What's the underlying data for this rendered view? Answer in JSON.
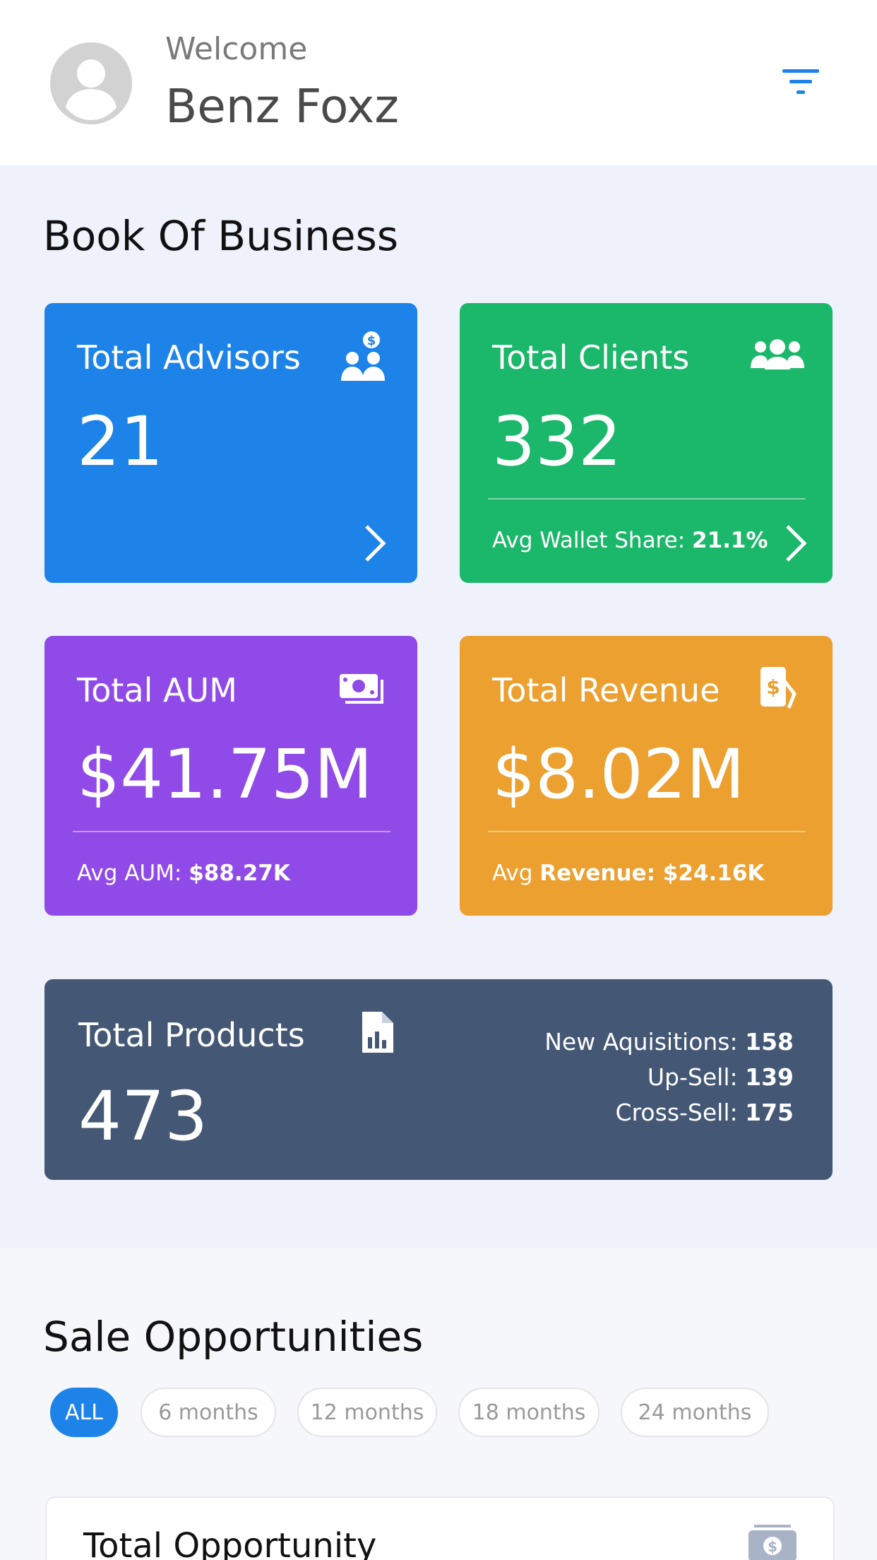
{
  "header": {
    "welcome": "Welcome",
    "username": "Benz Foxz"
  },
  "book_of_business": {
    "title": "Book Of Business",
    "advisors": {
      "label": "Total Advisors",
      "value": "21"
    },
    "clients": {
      "label": "Total Clients",
      "value": "332",
      "sub_label": "Avg Wallet Share: ",
      "sub_value": "21.1%"
    },
    "aum": {
      "label": "Total AUM",
      "value": "$41.75M",
      "sub_label": "Avg AUM: ",
      "sub_value": "$88.27K"
    },
    "revenue": {
      "label": "Total Revenue",
      "value": "$8.02M",
      "sub_label": "Avg ",
      "sub_value": "Revenue: $24.16K"
    },
    "products": {
      "label": "Total Products",
      "value": "473",
      "stats": [
        {
          "label": "New Aquisitions: ",
          "value": "158"
        },
        {
          "label": "Up-Sell: ",
          "value": "139"
        },
        {
          "label": "Cross-Sell: ",
          "value": "175"
        }
      ]
    }
  },
  "sale_opportunities": {
    "title": "Sale Opportunities",
    "chips": [
      {
        "label": "ALL",
        "active": true
      },
      {
        "label": "6 months",
        "active": false
      },
      {
        "label": "12 months",
        "active": false
      },
      {
        "label": "18 months",
        "active": false
      },
      {
        "label": "24 months",
        "active": false
      }
    ],
    "total_opportunity": {
      "label": "Total Opportunity"
    }
  },
  "colors": {
    "advisors": "#1e83e8",
    "clients": "#1bb76a",
    "aum": "#8f4ae8",
    "revenue": "#eba030",
    "products": "#445775",
    "accent": "#1e83e8"
  },
  "icons": {
    "avatar": "user-avatar-icon",
    "filter": "filter-icon",
    "advisors": "advisors-dollar-icon",
    "clients": "users-group-icon",
    "aum": "money-bills-icon",
    "revenue": "revenue-money-icon",
    "products": "file-chart-icon",
    "arrow": "chevron-right-icon",
    "opportunity": "money-bill-icon"
  }
}
